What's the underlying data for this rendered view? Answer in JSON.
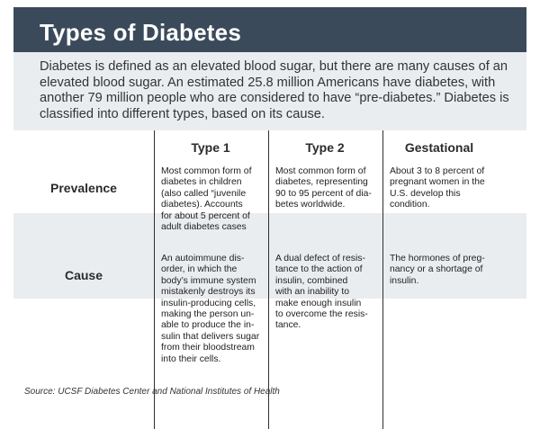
{
  "title": "Types of Diabetes",
  "intro": "Diabetes is defined as an elevated blood sugar, but there are many causes of an elevated blood sugar. An estimated 25.8 million Americans have diabetes, with another 79 million people who are considered to have “pre-diabetes.” Diabetes is classified into different types, based on its cause.",
  "table": {
    "columns": [
      "Type 1",
      "Type 2",
      "Gestational"
    ],
    "rows": [
      {
        "label": "Prevalence",
        "cells": [
          "Most common form of\ndiabetes in children\n(also called “juvenile\ndiabetes). Accounts\nfor about 5 percent of\nadult diabetes cases",
          "Most common form of\ndiabetes, representing\n90 to 95 percent of dia-\nbetes worldwide.",
          "About 3 to 8 percent of\npregnant women in the\nU.S. develop this\ncondition."
        ]
      },
      {
        "label": "Cause",
        "cells": [
          "An autoimmune dis-\norder, in which the\nbody’s immune system\nmistakenly destroys its\ninsulin-producing cells,\nmaking the person un-\nable to produce the in-\nsulin that delivers sugar\nfrom their bloodstream\ninto their cells.",
          "A dual defect of resis-\ntance to the action of\ninsulin, combined\nwith an inability to\nmake enough insulin\nto overcome the resis-\ntance.",
          "The hormones of preg-\nnancy or a shortage of\ninsulin."
        ]
      }
    ]
  },
  "source": "Source: UCSF Diabetes Center and National Institutes of Health",
  "colors": {
    "title_bar": "#3b4a5a",
    "panel": "#eaedf0",
    "divider": "#2f2f2f"
  }
}
